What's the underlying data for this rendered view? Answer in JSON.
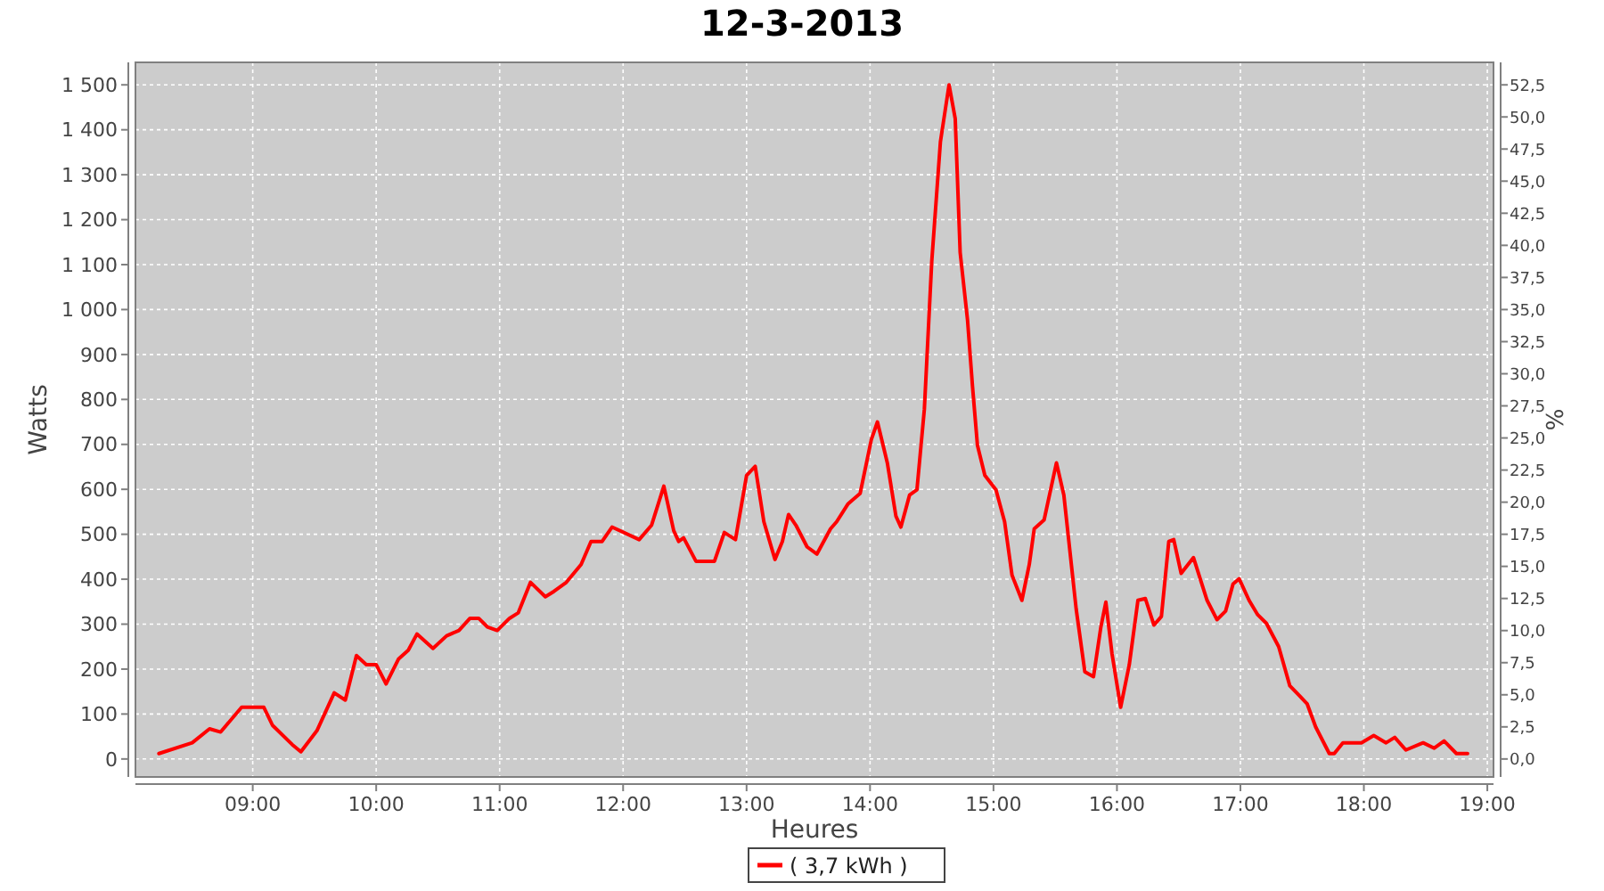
{
  "chart_data": {
    "type": "line",
    "title": "12-3-2013",
    "xlabel": "Heures",
    "ylabel": "Watts",
    "y2label": "%",
    "xlim": [
      8.05,
      19.05
    ],
    "xticks": [
      {
        "value": 9,
        "label": "09:00"
      },
      {
        "value": 10,
        "label": "10:00"
      },
      {
        "value": 11,
        "label": "11:00"
      },
      {
        "value": 12,
        "label": "12:00"
      },
      {
        "value": 13,
        "label": "13:00"
      },
      {
        "value": 14,
        "label": "14:00"
      },
      {
        "value": 15,
        "label": "15:00"
      },
      {
        "value": 16,
        "label": "16:00"
      },
      {
        "value": 17,
        "label": "17:00"
      },
      {
        "value": 18,
        "label": "18:00"
      },
      {
        "value": 19,
        "label": "19:00"
      }
    ],
    "ylim": [
      -40,
      1550
    ],
    "yticks": [
      0,
      100,
      200,
      300,
      400,
      500,
      600,
      700,
      800,
      900,
      {
        "value": 1000,
        "label": "1 000"
      },
      {
        "value": 1100,
        "label": "1 100"
      },
      {
        "value": 1200,
        "label": "1 200"
      },
      {
        "value": 1300,
        "label": "1 300"
      },
      {
        "value": 1400,
        "label": "1 400"
      },
      {
        "value": 1500,
        "label": "1 500"
      }
    ],
    "y2lim": [
      -1.4,
      54.25
    ],
    "y2ticks": [
      {
        "value": 0,
        "label": "0,0"
      },
      {
        "value": 2.5,
        "label": "2,5"
      },
      {
        "value": 5,
        "label": "5,0"
      },
      {
        "value": 7.5,
        "label": "7,5"
      },
      {
        "value": 10,
        "label": "10,0"
      },
      {
        "value": 12.5,
        "label": "12,5"
      },
      {
        "value": 15,
        "label": "15,0"
      },
      {
        "value": 17.5,
        "label": "17,5"
      },
      {
        "value": 20,
        "label": "20,0"
      },
      {
        "value": 22.5,
        "label": "22,5"
      },
      {
        "value": 25,
        "label": "25,0"
      },
      {
        "value": 27.5,
        "label": "27,5"
      },
      {
        "value": 30,
        "label": "30,0"
      },
      {
        "value": 32.5,
        "label": "32,5"
      },
      {
        "value": 35,
        "label": "35,0"
      },
      {
        "value": 37.5,
        "label": "37,5"
      },
      {
        "value": 40,
        "label": "40,0"
      },
      {
        "value": 42.5,
        "label": "42,5"
      },
      {
        "value": 45,
        "label": "45,0"
      },
      {
        "value": 47.5,
        "label": "47,5"
      },
      {
        "value": 50,
        "label": "50,0"
      },
      {
        "value": 52.5,
        "label": "52,5"
      }
    ],
    "grid": true,
    "legend": "bottom",
    "line_style": "solid",
    "series": [
      {
        "name": "( 3,7 kWh )",
        "color": "#ff0000",
        "x": [
          8.24,
          8.51,
          8.65,
          8.74,
          8.91,
          9.09,
          9.16,
          9.32,
          9.39,
          9.52,
          9.66,
          9.75,
          9.84,
          9.92,
          10.0,
          10.08,
          10.18,
          10.26,
          10.33,
          10.46,
          10.57,
          10.67,
          10.76,
          10.83,
          10.9,
          10.98,
          11.08,
          11.15,
          11.25,
          11.37,
          11.44,
          11.54,
          11.66,
          11.74,
          11.83,
          11.91,
          12.13,
          12.23,
          12.33,
          12.41,
          12.45,
          12.49,
          12.59,
          12.74,
          12.82,
          12.91,
          13.0,
          13.07,
          13.14,
          13.23,
          13.29,
          13.34,
          13.4,
          13.49,
          13.57,
          13.68,
          13.73,
          13.82,
          13.92,
          14.01,
          14.06,
          14.14,
          14.21,
          14.25,
          14.32,
          14.38,
          14.44,
          14.5,
          14.57,
          14.64,
          14.69,
          14.73,
          14.79,
          14.83,
          14.87,
          14.93,
          15.02,
          15.09,
          15.15,
          15.23,
          15.29,
          15.33,
          15.41,
          15.51,
          15.57,
          15.67,
          15.74,
          15.81,
          15.87,
          15.91,
          15.96,
          16.03,
          16.1,
          16.17,
          16.23,
          16.3,
          16.36,
          16.42,
          16.46,
          16.52,
          16.62,
          16.73,
          16.81,
          16.88,
          16.94,
          16.99,
          17.07,
          17.14,
          17.21,
          17.31,
          17.4,
          17.47,
          17.54,
          17.61,
          17.72,
          17.76,
          17.83,
          17.98,
          18.08,
          18.18,
          18.25,
          18.34,
          18.48,
          18.57,
          18.65,
          18.75,
          18.84
        ],
        "values": [
          12,
          36,
          67,
          60,
          115,
          115,
          75,
          32,
          16,
          63,
          147,
          131,
          230,
          210,
          210,
          167,
          222,
          242,
          278,
          246,
          274,
          286,
          313,
          313,
          294,
          286,
          313,
          325,
          393,
          361,
          373,
          393,
          433,
          484,
          484,
          516,
          488,
          520,
          607,
          508,
          484,
          492,
          440,
          440,
          504,
          488,
          631,
          651,
          528,
          444,
          484,
          544,
          520,
          472,
          456,
          512,
          528,
          567,
          591,
          710,
          750,
          659,
          540,
          516,
          587,
          599,
          778,
          1107,
          1373,
          1500,
          1425,
          1127,
          976,
          829,
          698,
          631,
          599,
          528,
          409,
          353,
          433,
          512,
          532,
          659,
          587,
          333,
          194,
          183,
          294,
          349,
          234,
          115,
          210,
          353,
          357,
          298,
          317,
          484,
          488,
          413,
          448,
          353,
          310,
          329,
          389,
          401,
          353,
          321,
          302,
          250,
          163,
          143,
          123,
          71,
          12,
          12,
          36,
          36,
          52,
          36,
          48,
          20,
          36,
          24,
          40,
          12,
          12
        ]
      }
    ]
  }
}
